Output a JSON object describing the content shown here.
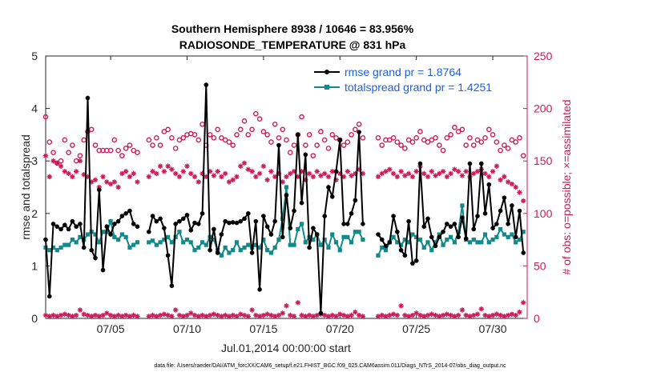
{
  "chart_data": {
    "type": "line",
    "title": "Southern Hemisphere 8938 / 10646 = 83.956%",
    "subtitle": "RADIOSONDE_TEMPERATURE @ 831 hPa",
    "xlabel": "Jul.01,2014 00:00:00 start",
    "ylabel": "rmse and totalspread",
    "ylabel_right": "# of obs: o=possible; ×=assimilated",
    "footer": "data file: /Users/raeder/DAI/ATM_forcXX/CAM6_setup/f.e21.FHIST_BGC.f09_025.CAM6assim.011/Diags_NTrS_2014-07/obs_diag_output.nc",
    "xlim": [
      0.75,
      32.25
    ],
    "ylim": [
      0,
      5
    ],
    "ylim_right": [
      0,
      250
    ],
    "x_ticks": [
      5,
      10,
      15,
      20,
      25,
      30
    ],
    "x_tick_labels": [
      "07/05",
      "07/10",
      "07/15",
      "07/20",
      "07/25",
      "07/30"
    ],
    "y_ticks": [
      0,
      1,
      2,
      3,
      4,
      5
    ],
    "y_tick_labels": [
      "0",
      "1",
      "2",
      "3",
      "4",
      "5"
    ],
    "y_right_ticks": [
      0,
      50,
      100,
      150,
      200,
      250
    ],
    "y_right_tick_labels": [
      "0",
      "50",
      "100",
      "150",
      "200",
      "250"
    ],
    "colors": {
      "rmse": "#000000",
      "spread": "#128a8a",
      "obs": "#cc1a5a",
      "legend_text": "#1f5fe0",
      "right_axis": "#cc1a5a"
    },
    "legend": {
      "rmse_label": "rmse grand pr = 1.8764",
      "spread_label": "totalspread grand pr = 1.4251"
    },
    "x_segments": [
      [
        0.75,
        1.0,
        1.25,
        1.5,
        1.75,
        2.0,
        2.25,
        2.5,
        2.75,
        3.0,
        3.25,
        3.5,
        3.75,
        4.0,
        4.25,
        4.5,
        4.75,
        5.0,
        5.25,
        5.5,
        5.75,
        6.0,
        6.25,
        6.5,
        6.75
      ],
      [
        7.5,
        7.75,
        8.0,
        8.25,
        8.5,
        8.75,
        9.0,
        9.25,
        9.5,
        9.75,
        10.0,
        10.25,
        10.5,
        10.75,
        11.0,
        11.25,
        11.5,
        11.75,
        12.0,
        12.25,
        12.5,
        12.75,
        13.0,
        13.25,
        13.5,
        13.75,
        14.0,
        14.25,
        14.5,
        14.75,
        15.0,
        15.25,
        15.5,
        15.75,
        16.0,
        16.25,
        16.5,
        16.75,
        17.0,
        17.25,
        17.5,
        17.75,
        18.0,
        18.25,
        18.5,
        18.75,
        19.0,
        19.25,
        19.5,
        19.75,
        20.0,
        20.25,
        20.5,
        20.75,
        21.0,
        21.25,
        21.5
      ],
      [
        22.5,
        22.75,
        23.0,
        23.25,
        23.5,
        23.75,
        24.0,
        24.25,
        24.5,
        24.75,
        25.0,
        25.25,
        25.5,
        25.75,
        26.0,
        26.25,
        26.5,
        26.75,
        27.0,
        27.25,
        27.5,
        27.75,
        28.0,
        28.25,
        28.5,
        28.75,
        29.0,
        29.25,
        29.5,
        29.75,
        30.0,
        30.25,
        30.5,
        30.75,
        31.0,
        31.25,
        31.5,
        31.75,
        32.0
      ]
    ],
    "rmse_segments": [
      [
        1.5,
        0.42,
        1.8,
        1.75,
        1.7,
        1.78,
        1.7,
        1.85,
        1.75,
        1.8,
        1.35,
        4.2,
        1.3,
        1.15,
        2.45,
        0.92,
        1.75,
        1.6,
        1.8,
        1.85,
        1.95,
        2.0,
        2.05,
        1.8,
        1.75
      ],
      [
        1.65,
        1.95,
        1.85,
        1.9,
        1.72,
        1.2,
        0.62,
        1.8,
        1.85,
        1.9,
        1.97,
        1.68,
        1.82,
        1.8,
        2.0,
        4.45,
        1.3,
        1.7,
        1.25,
        1.6,
        1.85,
        1.82,
        1.83,
        1.82,
        1.85,
        1.9,
        2.0,
        1.25,
        1.85,
        0.55,
        1.95,
        1.75,
        1.6,
        1.85,
        3.3,
        1.55,
        2.35,
        1.72,
        2.05,
        3.5,
        2.2,
        3.12,
        1.35,
        1.72,
        1.6,
        0.1,
        1.95,
        2.5,
        2.32,
        2.8,
        3.4,
        1.8,
        1.8,
        2.0,
        2.25,
        3.55,
        1.8
      ],
      [
        1.6,
        1.5,
        1.38,
        1.45,
        1.95,
        1.65,
        1.3,
        1.2,
        1.85,
        1.05,
        1.1,
        2.95,
        1.75,
        1.9,
        1.55,
        1.38,
        1.55,
        1.65,
        1.8,
        1.75,
        1.8,
        1.55,
        1.92,
        1.52,
        2.95,
        1.7,
        1.95,
        2.95,
        2.0,
        2.55,
        1.72,
        1.8,
        2.05,
        2.3,
        1.8,
        2.15,
        1.55,
        2.05,
        1.25
      ]
    ],
    "spread_segments": [
      [
        1.35,
        1.3,
        1.35,
        1.3,
        1.35,
        1.4,
        1.4,
        1.5,
        1.45,
        1.55,
        1.5,
        1.6,
        1.65,
        1.6,
        1.45,
        1.65,
        1.65,
        1.85,
        1.55,
        1.5,
        1.6,
        1.55,
        1.35,
        1.4,
        1.45
      ],
      [
        1.45,
        1.48,
        1.4,
        1.45,
        1.5,
        1.55,
        1.45,
        1.55,
        1.65,
        1.45,
        1.5,
        1.45,
        1.3,
        1.35,
        1.45,
        1.4,
        1.55,
        1.5,
        1.3,
        1.2,
        1.35,
        1.25,
        1.3,
        1.45,
        1.3,
        1.35,
        1.4,
        1.35,
        1.4,
        1.35,
        1.5,
        1.3,
        1.25,
        1.35,
        1.5,
        1.9,
        2.5,
        1.4,
        1.4,
        1.7,
        1.8,
        1.45,
        1.55,
        1.5,
        1.6,
        1.4,
        1.5,
        1.35,
        1.6,
        1.45,
        1.3,
        1.55,
        1.55,
        1.45,
        1.65,
        1.65,
        1.5
      ],
      [
        1.2,
        1.35,
        1.3,
        1.45,
        1.55,
        1.45,
        1.4,
        1.5,
        1.45,
        1.6,
        1.55,
        1.5,
        1.35,
        1.45,
        1.3,
        1.45,
        1.6,
        1.4,
        1.5,
        1.55,
        1.45,
        1.65,
        2.15,
        1.5,
        1.45,
        1.5,
        1.45,
        1.45,
        1.6,
        1.45,
        1.5,
        1.55,
        1.7,
        1.6,
        1.55,
        1.6,
        1.45,
        1.5,
        1.65
      ]
    ],
    "obs_possible_segments": [
      [
        192,
        168,
        158,
        148,
        150,
        170,
        158,
        165,
        150,
        155,
        170,
        178,
        180,
        165,
        160,
        160,
        160,
        160,
        170,
        160,
        155,
        162,
        165,
        160,
        158
      ],
      [
        170,
        165,
        172,
        165,
        178,
        180,
        172,
        162,
        170,
        172,
        175,
        176,
        175,
        170,
        185,
        165,
        175,
        172,
        180,
        172,
        170,
        168,
        165,
        175,
        180,
        188,
        175,
        180,
        195,
        190,
        178,
        175,
        168,
        185,
        172,
        180,
        170,
        158,
        165,
        175,
        192,
        165,
        175,
        155,
        165,
        178,
        170,
        162,
        175,
        172,
        170,
        165,
        168,
        175,
        180,
        185,
        172
      ],
      [
        172,
        165,
        170,
        170,
        172,
        168,
        165,
        162,
        170,
        168,
        172,
        178,
        170,
        168,
        170,
        172,
        165,
        160,
        172,
        175,
        182,
        178,
        180,
        165,
        172,
        165,
        170,
        168,
        172,
        180,
        175,
        168,
        160,
        165,
        162,
        170,
        168,
        172,
        155
      ]
    ],
    "obs_assimilated_segments": [
      [
        155,
        135,
        150,
        148,
        145,
        140,
        138,
        135,
        140,
        150,
        137,
        135,
        130,
        132,
        125,
        135,
        130,
        128,
        130,
        125,
        138,
        140,
        135,
        138,
        130
      ],
      [
        135,
        140,
        138,
        145,
        140,
        145,
        142,
        138,
        135,
        140,
        145,
        138,
        135,
        130,
        138,
        135,
        140,
        136,
        140,
        135,
        138,
        130,
        132,
        135,
        145,
        148,
        142,
        140,
        135,
        138,
        145,
        132,
        140,
        135,
        138,
        130,
        135,
        138,
        140,
        135,
        140,
        132,
        138,
        135,
        140,
        136,
        138,
        135,
        140,
        132,
        138,
        135,
        140,
        136,
        138,
        142,
        138
      ],
      [
        135,
        138,
        140,
        142,
        138,
        135,
        140,
        136,
        138,
        135,
        140,
        145,
        138,
        135,
        140,
        136,
        138,
        140,
        135,
        138,
        142,
        140,
        136,
        140,
        135,
        138,
        140,
        142,
        138,
        135,
        140,
        145,
        132,
        135,
        130,
        128,
        125,
        120,
        112
      ]
    ],
    "obs_rejected_segments": [
      [
        3,
        2,
        3,
        2,
        3,
        4,
        3,
        2,
        3,
        8,
        4,
        3,
        2,
        3,
        2,
        3,
        5,
        3,
        2,
        3,
        2,
        3,
        2,
        3,
        2
      ],
      [
        2,
        3,
        2,
        3,
        4,
        3,
        2,
        8,
        3,
        2,
        3,
        5,
        3,
        2,
        3,
        2,
        3,
        4,
        3,
        2,
        3,
        2,
        3,
        2,
        4,
        3,
        2,
        8,
        3,
        2,
        3,
        4,
        3,
        2,
        3,
        5,
        12,
        3,
        2,
        15,
        3,
        2,
        3,
        2,
        3,
        4,
        3,
        2,
        3,
        2,
        4,
        3,
        2,
        3,
        6,
        3,
        2
      ],
      [
        2,
        3,
        2,
        3,
        4,
        3,
        12,
        3,
        2,
        3,
        5,
        3,
        2,
        3,
        4,
        3,
        2,
        3,
        4,
        3,
        2,
        3,
        8,
        3,
        2,
        3,
        4,
        9,
        3,
        2,
        3,
        4,
        3,
        2,
        3,
        4,
        3,
        6,
        15
      ]
    ]
  }
}
